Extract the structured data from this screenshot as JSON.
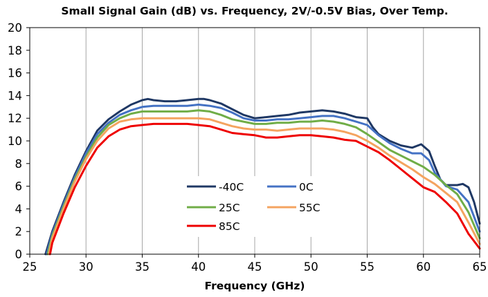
{
  "chart_data": {
    "type": "line",
    "title": "Small Signal Gain (dB) vs. Frequency, 2V/-0.5V Bias, Over Temp.",
    "xlabel": "Frequency (GHz)",
    "ylabel": "",
    "xlim": [
      25,
      65
    ],
    "ylim": [
      0,
      20
    ],
    "xticks": [
      "25",
      "30",
      "35",
      "40",
      "45",
      "50",
      "55",
      "60",
      "65"
    ],
    "yticks": [
      "0",
      "2",
      "4",
      "6",
      "8",
      "10",
      "12",
      "14",
      "16",
      "18",
      "20"
    ],
    "grid": "vertical",
    "legend_position": "inside-lower-center",
    "series": [
      {
        "name": "-40C",
        "color": "#1f3864",
        "x": [
          26.4,
          27,
          28,
          29,
          30,
          31,
          32,
          33,
          34,
          35,
          35.5,
          36,
          37,
          38,
          39,
          40,
          40.5,
          41,
          42,
          43,
          44,
          45,
          46,
          47,
          48,
          49,
          50,
          51,
          52,
          53,
          54,
          55,
          55.5,
          56,
          57,
          58,
          59,
          59.8,
          60.5,
          61,
          61.5,
          62,
          63,
          63.5,
          64,
          64.5,
          65
        ],
        "y": [
          0,
          2,
          4.6,
          7,
          9.1,
          10.9,
          11.9,
          12.6,
          13.2,
          13.6,
          13.7,
          13.6,
          13.5,
          13.5,
          13.6,
          13.7,
          13.7,
          13.6,
          13.3,
          12.8,
          12.3,
          12.0,
          12.1,
          12.2,
          12.3,
          12.5,
          12.6,
          12.7,
          12.6,
          12.4,
          12.1,
          12.0,
          11.2,
          10.6,
          10.0,
          9.6,
          9.4,
          9.7,
          9.1,
          7.8,
          6.6,
          6.1,
          6.1,
          6.2,
          5.9,
          4.6,
          2.7
        ]
      },
      {
        "name": "0C",
        "color": "#4472c4",
        "x": [
          26.5,
          27,
          28,
          29,
          30,
          31,
          32,
          33,
          34,
          35,
          36,
          37,
          38,
          39,
          40,
          41,
          42,
          43,
          44,
          45,
          46,
          47,
          48,
          49,
          50,
          51,
          52,
          53,
          54,
          55,
          56,
          57,
          58,
          59,
          59.8,
          60.5,
          61,
          62,
          63,
          64,
          65
        ],
        "y": [
          0,
          1.8,
          4.4,
          6.8,
          8.9,
          10.6,
          11.6,
          12.3,
          12.7,
          13.0,
          13.1,
          13.1,
          13.1,
          13.1,
          13.2,
          13.1,
          12.9,
          12.5,
          12.0,
          11.8,
          11.8,
          11.9,
          11.9,
          12.0,
          12.1,
          12.2,
          12.2,
          12.0,
          11.7,
          11.4,
          10.5,
          9.8,
          9.3,
          8.9,
          8.9,
          8.3,
          7.2,
          6.0,
          5.7,
          4.6,
          2.0
        ]
      },
      {
        "name": "25C",
        "color": "#70ad47",
        "x": [
          26.6,
          27,
          28,
          29,
          30,
          31,
          32,
          33,
          34,
          35,
          36,
          37,
          38,
          39,
          40,
          41,
          42,
          43,
          44,
          45,
          46,
          47,
          48,
          49,
          50,
          51,
          52,
          53,
          54,
          55,
          56,
          57,
          58,
          59,
          60,
          61,
          62,
          63,
          64,
          65
        ],
        "y": [
          0,
          1.6,
          4.2,
          6.6,
          8.6,
          10.3,
          11.4,
          12.0,
          12.4,
          12.6,
          12.6,
          12.6,
          12.6,
          12.6,
          12.7,
          12.6,
          12.3,
          11.9,
          11.7,
          11.5,
          11.5,
          11.6,
          11.6,
          11.7,
          11.7,
          11.8,
          11.7,
          11.5,
          11.2,
          10.6,
          9.9,
          9.2,
          8.7,
          8.2,
          7.7,
          7.0,
          6.1,
          5.3,
          3.7,
          1.4
        ]
      },
      {
        "name": "55C",
        "color": "#f4a460",
        "x": [
          26.7,
          27,
          28,
          29,
          30,
          31,
          32,
          33,
          34,
          35,
          36,
          37,
          38,
          39,
          40,
          41,
          42,
          43,
          44,
          45,
          46,
          47,
          48,
          49,
          50,
          51,
          52,
          53,
          54,
          55,
          56,
          57,
          58,
          59,
          60,
          61,
          62,
          63,
          64,
          65
        ],
        "y": [
          0,
          1.4,
          4.0,
          6.4,
          8.4,
          10.0,
          11.1,
          11.7,
          11.9,
          12.0,
          12.0,
          12.0,
          12.0,
          12.0,
          12.0,
          11.9,
          11.6,
          11.3,
          11.1,
          11.0,
          11.0,
          10.9,
          11.0,
          11.1,
          11.1,
          11.1,
          11.0,
          10.8,
          10.5,
          10.0,
          9.4,
          8.7,
          8.1,
          7.5,
          6.8,
          6.2,
          5.4,
          4.6,
          2.8,
          0.9
        ]
      },
      {
        "name": "85C",
        "color": "#ee0000",
        "x": [
          26.8,
          27,
          28,
          29,
          30,
          31,
          32,
          33,
          34,
          35,
          36,
          37,
          38,
          39,
          40,
          41,
          42,
          43,
          44,
          45,
          46,
          47,
          48,
          49,
          50,
          51,
          52,
          53,
          54,
          55,
          56,
          57,
          58,
          59,
          60,
          61,
          62,
          63,
          64,
          65
        ],
        "y": [
          0,
          1.0,
          3.6,
          5.9,
          7.8,
          9.4,
          10.4,
          11.0,
          11.3,
          11.4,
          11.5,
          11.5,
          11.5,
          11.5,
          11.4,
          11.3,
          11.0,
          10.7,
          10.6,
          10.5,
          10.3,
          10.3,
          10.4,
          10.5,
          10.5,
          10.4,
          10.3,
          10.1,
          10.0,
          9.5,
          9.0,
          8.3,
          7.5,
          6.7,
          5.9,
          5.5,
          4.6,
          3.6,
          1.8,
          0.5
        ]
      }
    ]
  }
}
